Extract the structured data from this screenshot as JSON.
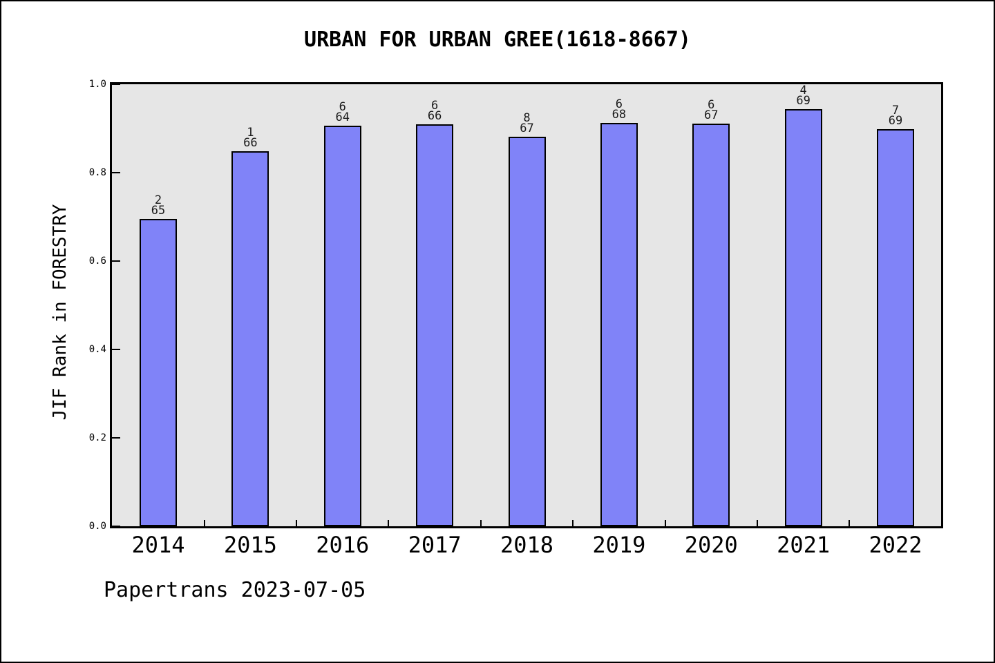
{
  "window": {
    "background": "#ffffff",
    "frame_border_color": "#000000"
  },
  "chart_data": {
    "type": "bar",
    "title": "URBAN FOR URBAN GREE(1618-8667)",
    "xlabel": "",
    "ylabel": "JIF Rank in FORESTRY",
    "categories": [
      "2014",
      "2015",
      "2016",
      "2017",
      "2018",
      "2019",
      "2020",
      "2021",
      "2022"
    ],
    "values": [
      0.695,
      0.848,
      0.906,
      0.909,
      0.881,
      0.912,
      0.911,
      0.944,
      0.898
    ],
    "bar_labels": [
      {
        "rank": "2",
        "total": "65"
      },
      {
        "rank": "1",
        "total": "66"
      },
      {
        "rank": "6",
        "total": "64"
      },
      {
        "rank": "6",
        "total": "66"
      },
      {
        "rank": "8",
        "total": "67"
      },
      {
        "rank": "6",
        "total": "68"
      },
      {
        "rank": "6",
        "total": "67"
      },
      {
        "rank": "4",
        "total": "69"
      },
      {
        "rank": "7",
        "total": "69"
      }
    ],
    "ylim": [
      0.0,
      1.0
    ],
    "ytick_labels": [
      "1.0",
      "0.8",
      "0.6",
      "0.4",
      "0.2",
      "0.0"
    ],
    "grid": false,
    "legend": null,
    "bar_color": "#8083f8",
    "bar_edge_color": "#000000",
    "plot_background": "#e6e6e6"
  },
  "footer": {
    "text": "Papertrans 2023-07-05"
  }
}
